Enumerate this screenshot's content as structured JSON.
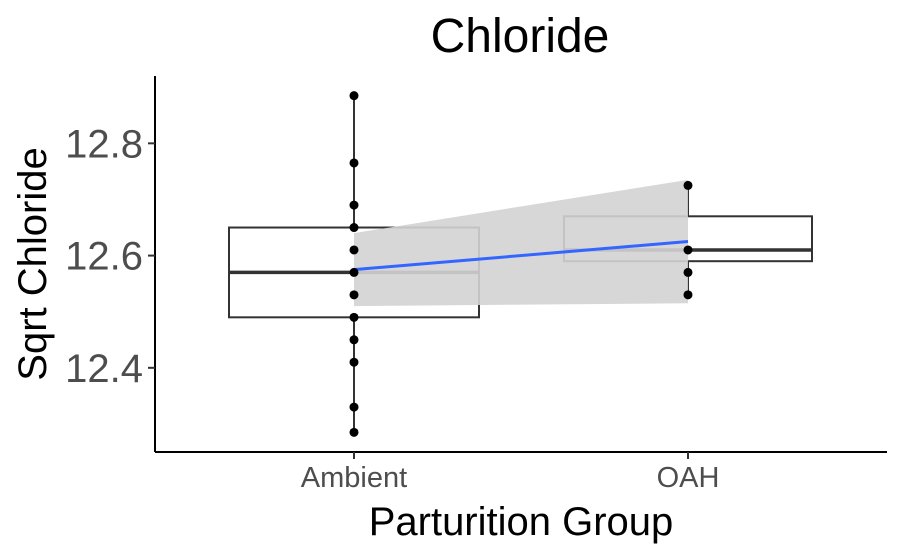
{
  "chart_data": {
    "type": "box",
    "title": "Chloride",
    "xlabel": "Parturition Group",
    "ylabel": "Sqrt Chloride",
    "categories": [
      "Ambient",
      "OAH"
    ],
    "ylim": [
      12.25,
      12.92
    ],
    "yticks": [
      12.4,
      12.6,
      12.8
    ],
    "ytick_labels": [
      "12.4",
      "12.6",
      "12.8"
    ],
    "boxes": [
      {
        "category": "Ambient",
        "q1": 12.49,
        "median": 12.57,
        "q3": 12.65,
        "whisker_low": 12.285,
        "whisker_high": 12.885
      },
      {
        "category": "OAH",
        "q1": 12.59,
        "median": 12.61,
        "q3": 12.67,
        "whisker_low": 12.53,
        "whisker_high": 12.725
      }
    ],
    "points": [
      {
        "category": "Ambient",
        "values": [
          12.885,
          12.765,
          12.69,
          12.65,
          12.61,
          12.57,
          12.53,
          12.49,
          12.45,
          12.41,
          12.33,
          12.285
        ]
      },
      {
        "category": "OAH",
        "values": [
          12.725,
          12.61,
          12.57,
          12.53
        ]
      }
    ],
    "trend": {
      "x": [
        "Ambient",
        "OAH"
      ],
      "y": [
        12.575,
        12.625
      ],
      "ci_low": [
        12.51,
        12.515
      ],
      "ci_high": [
        12.64,
        12.735
      ]
    },
    "grid": false,
    "legend": "none",
    "colors": {
      "box_stroke": "#333333",
      "point": "#000000",
      "trend_line": "#3366ff",
      "ci_band": "#d3d3d3",
      "axis": "#000000"
    }
  }
}
